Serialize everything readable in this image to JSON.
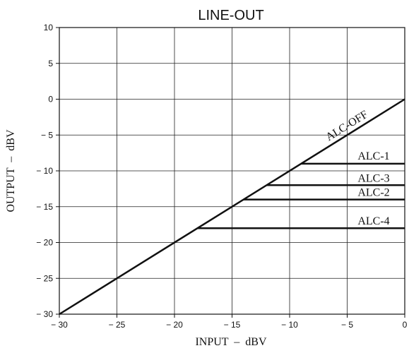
{
  "chart_data": {
    "type": "line",
    "title": "LINE-OUT",
    "xlabel": "INPUT  –  dBV",
    "ylabel": "OUTPUT  –  dBV",
    "xlim": [
      -30,
      0
    ],
    "ylim": [
      -30,
      10
    ],
    "grid": true,
    "x_ticks": [
      -30,
      -25,
      -20,
      -15,
      -10,
      -5,
      0
    ],
    "x_tick_labels": [
      "− 30",
      "− 25",
      "− 20",
      "− 15",
      "− 10",
      "− 5",
      "0"
    ],
    "y_ticks": [
      10,
      5,
      0,
      -5,
      -10,
      -15,
      -20,
      -25,
      -30
    ],
    "y_tick_labels": [
      "10",
      "5",
      "0",
      "− 5",
      "− 10",
      "− 15",
      "− 20",
      "− 25",
      "− 30"
    ],
    "series": [
      {
        "name": "ALC-OFF",
        "x": [
          -30,
          0
        ],
        "y": [
          -30,
          0
        ]
      },
      {
        "name": "ALC-1",
        "x": [
          -9,
          0
        ],
        "y": [
          -9,
          -9
        ]
      },
      {
        "name": "ALC-3",
        "x": [
          -12,
          0
        ],
        "y": [
          -12,
          -12
        ]
      },
      {
        "name": "ALC-2",
        "x": [
          -14,
          0
        ],
        "y": [
          -14,
          -14
        ]
      },
      {
        "name": "ALC-4",
        "x": [
          -18,
          0
        ],
        "y": [
          -18,
          -18
        ]
      }
    ]
  }
}
